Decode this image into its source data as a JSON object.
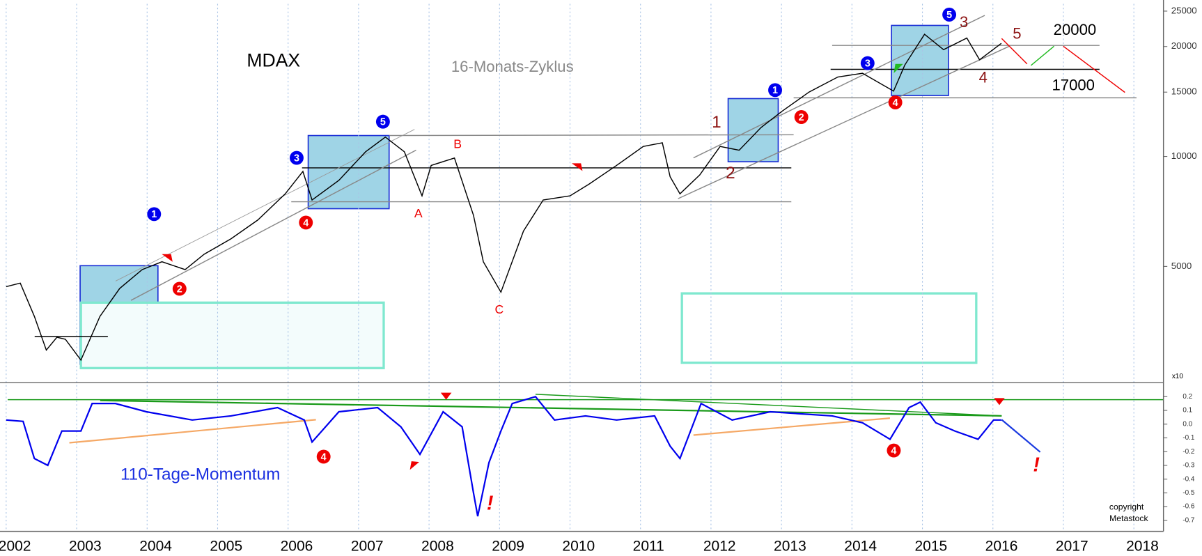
{
  "chart_data": [
    {
      "type": "line",
      "title": "MDAX",
      "subtitle": "16-Monats-Zyklus",
      "ylog": true,
      "xlim": [
        2002,
        2018.42
      ],
      "ylim": [
        2425,
        26170
      ],
      "yticks": [
        5000,
        10000,
        15000,
        20000,
        25000
      ],
      "axis_note": "x10",
      "series": [
        {
          "name": "MDAX",
          "color": "#000000",
          "x": [
            2002.0,
            2002.2,
            2002.4,
            2002.57,
            2002.72,
            2002.84,
            2003.06,
            2003.33,
            2003.61,
            2003.93,
            2004.21,
            2004.54,
            2004.81,
            2005.19,
            2005.57,
            2005.96,
            2006.21,
            2006.34,
            2006.72,
            2007.1,
            2007.38,
            2007.65,
            2007.9,
            2008.03,
            2008.36,
            2008.63,
            2008.77,
            2009.02,
            2009.34,
            2009.62,
            2010.0,
            2010.27,
            2010.66,
            2011.04,
            2011.31,
            2011.42,
            2011.56,
            2011.84,
            2012.13,
            2012.4,
            2012.71,
            2013.01,
            2013.39,
            2013.8,
            2014.15,
            2014.59,
            2014.75,
            2015.03,
            2015.3,
            2015.63,
            2015.81,
            2016.12
          ],
          "values": [
            4400,
            4500,
            3650,
            2950,
            3200,
            3160,
            2770,
            3650,
            4350,
            4900,
            5150,
            4900,
            5400,
            5950,
            6700,
            7900,
            9100,
            7600,
            8600,
            10300,
            11300,
            10300,
            7800,
            9450,
            9900,
            6900,
            5150,
            4250,
            6250,
            7600,
            7800,
            8400,
            9450,
            10650,
            10900,
            8800,
            7900,
            8900,
            10650,
            10400,
            12000,
            13300,
            15000,
            16500,
            16900,
            15100,
            17800,
            21600,
            19600,
            21100,
            18400,
            20400
          ]
        }
      ],
      "annotations": [
        "20000",
        "17000",
        "A",
        "B",
        "C",
        "1",
        "2",
        "3",
        "4",
        "5"
      ],
      "markers": [
        {
          "text": "1",
          "color": "#0000ee"
        },
        {
          "text": "3",
          "color": "#0000ee"
        },
        {
          "text": "5",
          "color": "#0000ee"
        },
        {
          "text": "1",
          "color": "#0000ee"
        },
        {
          "text": "3",
          "color": "#0000ee"
        },
        {
          "text": "5",
          "color": "#0000ee"
        },
        {
          "text": "2",
          "color": "#ee0000"
        },
        {
          "text": "4",
          "color": "#ee0000"
        },
        {
          "text": "2",
          "color": "#ee0000"
        },
        {
          "text": "4",
          "color": "#ee0000"
        }
      ]
    },
    {
      "type": "line",
      "title": "110-Tage-Momentum",
      "xlim": [
        2002,
        2018.42
      ],
      "ylim": [
        -0.78,
        0.29
      ],
      "xticks": [
        2002,
        2003,
        2004,
        2005,
        2006,
        2007,
        2008,
        2009,
        2010,
        2011,
        2012,
        2013,
        2014,
        2015,
        2016,
        2017,
        2018
      ],
      "yticks": [
        0.2,
        0.1,
        {
          "value": 0,
          "label": "0.0"
        },
        -0.1,
        -0.2,
        -0.3,
        -0.4,
        -0.5,
        -0.6,
        -0.7
      ],
      "series": [
        {
          "name": "110-Tage-Momentum",
          "color": "#0000ee",
          "x": [
            2002.0,
            2002.24,
            2002.4,
            2002.59,
            2002.79,
            2003.06,
            2003.22,
            2003.55,
            2003.99,
            2004.64,
            2005.19,
            2005.85,
            2006.23,
            2006.34,
            2006.72,
            2007.27,
            2007.6,
            2007.87,
            2008.2,
            2008.47,
            2008.63,
            2008.69,
            2008.85,
            2009.02,
            2009.18,
            2009.51,
            2009.78,
            2010.22,
            2010.66,
            2011.2,
            2011.42,
            2011.56,
            2011.86,
            2012.3,
            2012.84,
            2013.72,
            2014.15,
            2014.54,
            2014.81,
            2014.97,
            2015.19,
            2015.46,
            2015.79,
            2016.01,
            2016.12
          ],
          "values": [
            0.03,
            0.02,
            -0.25,
            -0.3,
            -0.05,
            -0.05,
            0.15,
            0.15,
            0.09,
            0.03,
            0.06,
            0.12,
            0.03,
            -0.13,
            0.09,
            0.12,
            -0.02,
            -0.22,
            0.09,
            -0.02,
            -0.5,
            -0.67,
            -0.28,
            -0.05,
            0.15,
            0.2,
            0.03,
            0.06,
            0.03,
            0.06,
            -0.16,
            -0.25,
            0.15,
            0.03,
            0.09,
            0.06,
            0.01,
            -0.11,
            0.12,
            0.16,
            0.01,
            -0.05,
            -0.11,
            0.03,
            0.03
          ]
        }
      ],
      "annotations": [
        "!",
        "!",
        "copyright",
        "Metastock"
      ],
      "markers": [
        {
          "text": "4",
          "color": "#ee0000"
        },
        {
          "text": "4",
          "color": "#ee0000"
        }
      ]
    }
  ]
}
